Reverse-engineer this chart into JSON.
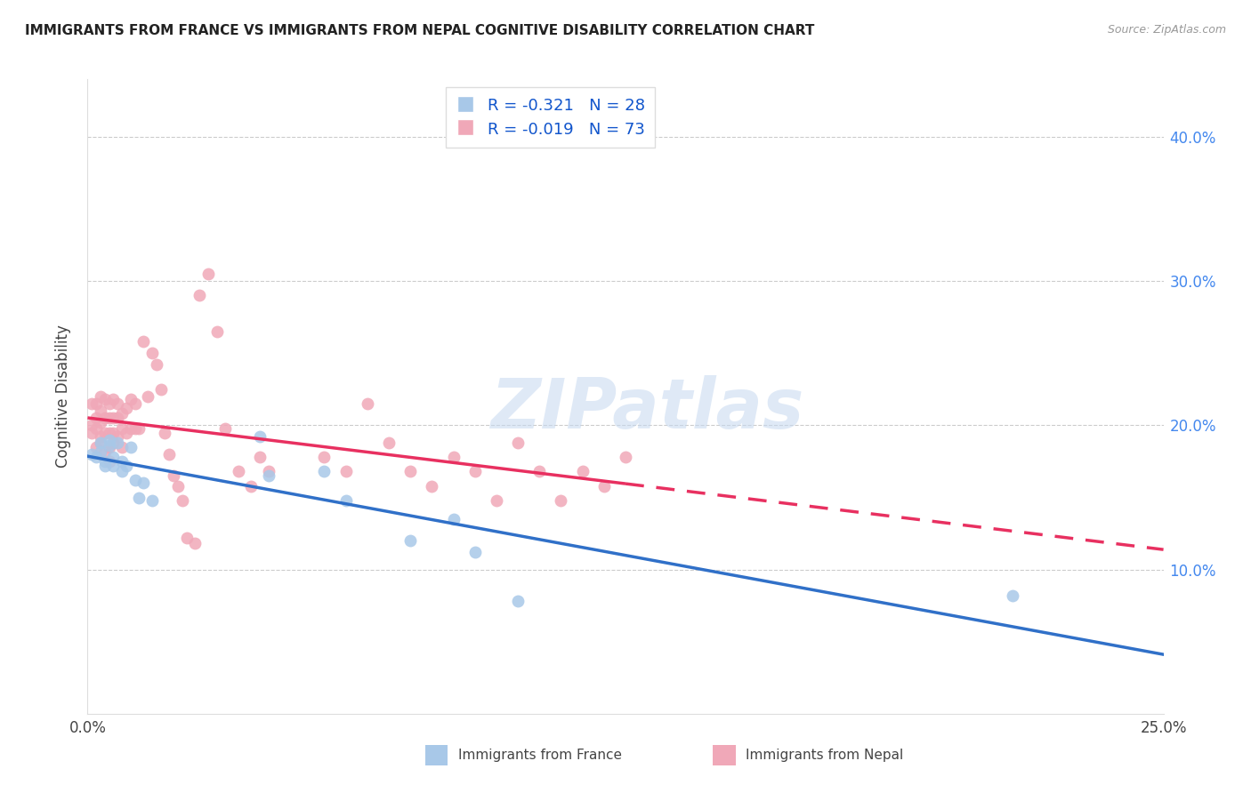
{
  "title": "IMMIGRANTS FROM FRANCE VS IMMIGRANTS FROM NEPAL COGNITIVE DISABILITY CORRELATION CHART",
  "source": "Source: ZipAtlas.com",
  "ylabel": "Cognitive Disability",
  "watermark": "ZIPatlas",
  "france_R": -0.321,
  "france_N": 28,
  "nepal_R": -0.019,
  "nepal_N": 73,
  "france_color": "#a8c8e8",
  "nepal_color": "#f0a8b8",
  "france_line_color": "#3070c8",
  "nepal_line_color": "#e83060",
  "right_tick_color": "#4488ee",
  "xlim": [
    0.0,
    0.25
  ],
  "ylim": [
    0.0,
    0.44
  ],
  "france_x": [
    0.001,
    0.002,
    0.003,
    0.003,
    0.004,
    0.004,
    0.005,
    0.005,
    0.006,
    0.006,
    0.007,
    0.008,
    0.008,
    0.009,
    0.01,
    0.011,
    0.012,
    0.013,
    0.015,
    0.04,
    0.042,
    0.055,
    0.06,
    0.075,
    0.085,
    0.09,
    0.1,
    0.215
  ],
  "france_y": [
    0.18,
    0.178,
    0.188,
    0.182,
    0.175,
    0.172,
    0.19,
    0.186,
    0.178,
    0.172,
    0.188,
    0.175,
    0.168,
    0.172,
    0.185,
    0.162,
    0.15,
    0.16,
    0.148,
    0.192,
    0.165,
    0.168,
    0.148,
    0.12,
    0.135,
    0.112,
    0.078,
    0.082
  ],
  "nepal_x": [
    0.001,
    0.001,
    0.001,
    0.002,
    0.002,
    0.002,
    0.002,
    0.003,
    0.003,
    0.003,
    0.003,
    0.003,
    0.004,
    0.004,
    0.004,
    0.004,
    0.005,
    0.005,
    0.005,
    0.005,
    0.005,
    0.006,
    0.006,
    0.006,
    0.006,
    0.007,
    0.007,
    0.007,
    0.008,
    0.008,
    0.008,
    0.009,
    0.009,
    0.01,
    0.01,
    0.011,
    0.011,
    0.012,
    0.013,
    0.014,
    0.015,
    0.016,
    0.017,
    0.018,
    0.019,
    0.02,
    0.021,
    0.022,
    0.023,
    0.025,
    0.026,
    0.028,
    0.03,
    0.032,
    0.035,
    0.038,
    0.04,
    0.042,
    0.055,
    0.06,
    0.065,
    0.07,
    0.075,
    0.08,
    0.085,
    0.09,
    0.095,
    0.1,
    0.105,
    0.11,
    0.115,
    0.12,
    0.125
  ],
  "nepal_y": [
    0.2,
    0.215,
    0.195,
    0.215,
    0.205,
    0.198,
    0.185,
    0.22,
    0.21,
    0.202,
    0.192,
    0.188,
    0.218,
    0.205,
    0.195,
    0.182,
    0.215,
    0.205,
    0.195,
    0.185,
    0.175,
    0.218,
    0.205,
    0.195,
    0.188,
    0.215,
    0.205,
    0.192,
    0.208,
    0.198,
    0.185,
    0.212,
    0.195,
    0.218,
    0.198,
    0.215,
    0.198,
    0.198,
    0.258,
    0.22,
    0.25,
    0.242,
    0.225,
    0.195,
    0.18,
    0.165,
    0.158,
    0.148,
    0.122,
    0.118,
    0.29,
    0.305,
    0.265,
    0.198,
    0.168,
    0.158,
    0.178,
    0.168,
    0.178,
    0.168,
    0.215,
    0.188,
    0.168,
    0.158,
    0.178,
    0.168,
    0.148,
    0.188,
    0.168,
    0.148,
    0.168,
    0.158,
    0.178
  ]
}
